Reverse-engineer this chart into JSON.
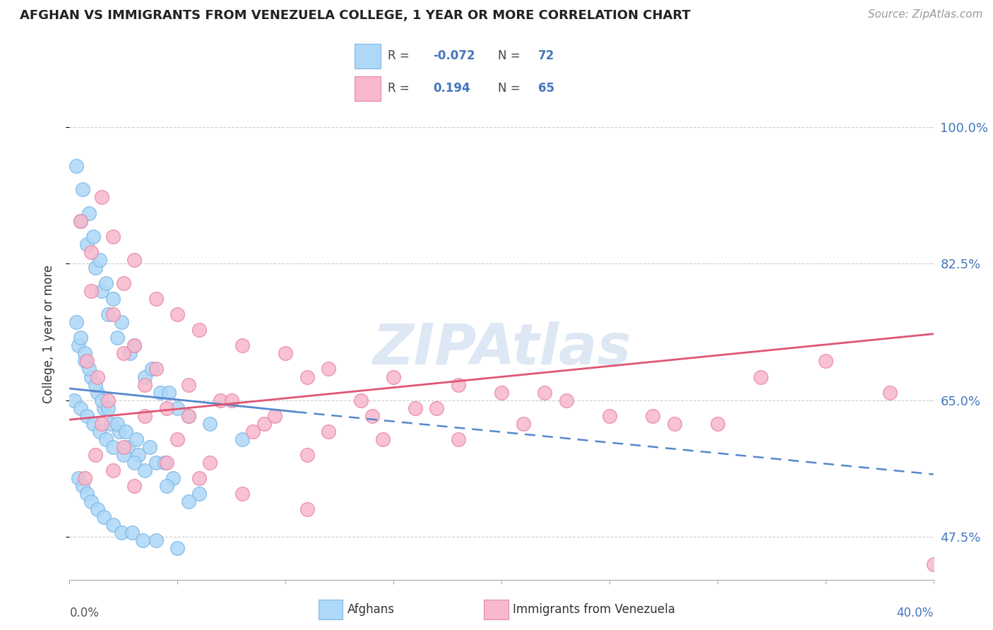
{
  "title": "AFGHAN VS IMMIGRANTS FROM VENEZUELA COLLEGE, 1 YEAR OR MORE CORRELATION CHART",
  "source": "Source: ZipAtlas.com",
  "ylabel": "College, 1 year or more",
  "yticks": [
    47.5,
    65.0,
    82.5,
    100.0
  ],
  "ytick_labels": [
    "47.5%",
    "65.0%",
    "82.5%",
    "100.0%"
  ],
  "xlim": [
    0.0,
    40.0
  ],
  "ylim": [
    42.0,
    105.0
  ],
  "watermark": "ZIPAtlas",
  "legend_r1": "-0.072",
  "legend_n1": "72",
  "legend_r2": "0.194",
  "legend_n2": "65",
  "afghan_color": "#add8f7",
  "afghan_edge": "#80b8e8",
  "venezuela_color": "#f7b8cc",
  "venezuela_edge": "#e888a8",
  "trend_blue": "#5588cc",
  "trend_pink": "#e05575",
  "text_blue": "#4477bb",
  "watermark_color": "#c8d8ee",
  "afghan_x": [
    0.5,
    0.8,
    1.2,
    1.5,
    1.8,
    2.2,
    2.8,
    3.5,
    4.2,
    5.0,
    6.5,
    8.0,
    0.3,
    0.6,
    0.9,
    1.1,
    1.4,
    1.7,
    2.0,
    2.4,
    3.0,
    3.8,
    4.6,
    5.5,
    0.4,
    0.7,
    1.0,
    1.3,
    1.6,
    1.9,
    2.3,
    2.7,
    3.2,
    4.0,
    4.8,
    6.0,
    0.2,
    0.5,
    0.8,
    1.1,
    1.4,
    1.7,
    2.0,
    2.5,
    3.0,
    3.5,
    4.5,
    5.5,
    0.3,
    0.5,
    0.7,
    0.9,
    1.2,
    1.5,
    1.8,
    2.2,
    2.6,
    3.1,
    3.7,
    4.4,
    0.4,
    0.6,
    0.8,
    1.0,
    1.3,
    1.6,
    2.0,
    2.4,
    2.9,
    3.4,
    4.0,
    5.0
  ],
  "afghan_y": [
    88,
    85,
    82,
    79,
    76,
    73,
    71,
    68,
    66,
    64,
    62,
    60,
    95,
    92,
    89,
    86,
    83,
    80,
    78,
    75,
    72,
    69,
    66,
    63,
    72,
    70,
    68,
    66,
    64,
    62,
    61,
    59,
    58,
    57,
    55,
    53,
    65,
    64,
    63,
    62,
    61,
    60,
    59,
    58,
    57,
    56,
    54,
    52,
    75,
    73,
    71,
    69,
    67,
    65,
    64,
    62,
    61,
    60,
    59,
    57,
    55,
    54,
    53,
    52,
    51,
    50,
    49,
    48,
    48,
    47,
    47,
    46
  ],
  "venezuela_x": [
    0.5,
    1.0,
    1.5,
    2.0,
    2.5,
    3.0,
    4.0,
    5.0,
    6.0,
    8.0,
    10.0,
    12.0,
    15.0,
    18.0,
    22.0,
    0.8,
    1.3,
    1.8,
    2.5,
    3.5,
    4.5,
    5.5,
    7.0,
    9.0,
    11.0,
    13.5,
    16.0,
    20.0,
    25.0,
    30.0,
    1.0,
    2.0,
    3.0,
    4.0,
    5.5,
    7.5,
    9.5,
    12.0,
    14.5,
    17.0,
    21.0,
    27.0,
    35.0,
    1.5,
    2.5,
    3.5,
    5.0,
    6.5,
    8.5,
    11.0,
    14.0,
    18.0,
    23.0,
    28.0,
    32.0,
    38.0,
    0.7,
    1.2,
    2.0,
    3.0,
    4.5,
    6.0,
    8.0,
    11.0,
    40.0
  ],
  "venezuela_y": [
    88,
    84,
    91,
    86,
    80,
    83,
    78,
    76,
    74,
    72,
    71,
    69,
    68,
    67,
    66,
    70,
    68,
    65,
    71,
    67,
    64,
    63,
    65,
    62,
    68,
    65,
    64,
    66,
    63,
    62,
    79,
    76,
    72,
    69,
    67,
    65,
    63,
    61,
    60,
    64,
    62,
    63,
    70,
    62,
    59,
    63,
    60,
    57,
    61,
    58,
    63,
    60,
    65,
    62,
    68,
    66,
    55,
    58,
    56,
    54,
    57,
    55,
    53,
    51,
    44
  ],
  "blue_trend_x0": 0.0,
  "blue_trend_y0": 66.5,
  "blue_trend_x1": 10.5,
  "blue_trend_y1": 63.5,
  "blue_dash_x0": 10.5,
  "blue_dash_y0": 63.5,
  "blue_dash_x1": 40.0,
  "blue_dash_y1": 55.5,
  "pink_trend_x0": 0.0,
  "pink_trend_y0": 62.5,
  "pink_trend_x1": 40.0,
  "pink_trend_y1": 73.5
}
